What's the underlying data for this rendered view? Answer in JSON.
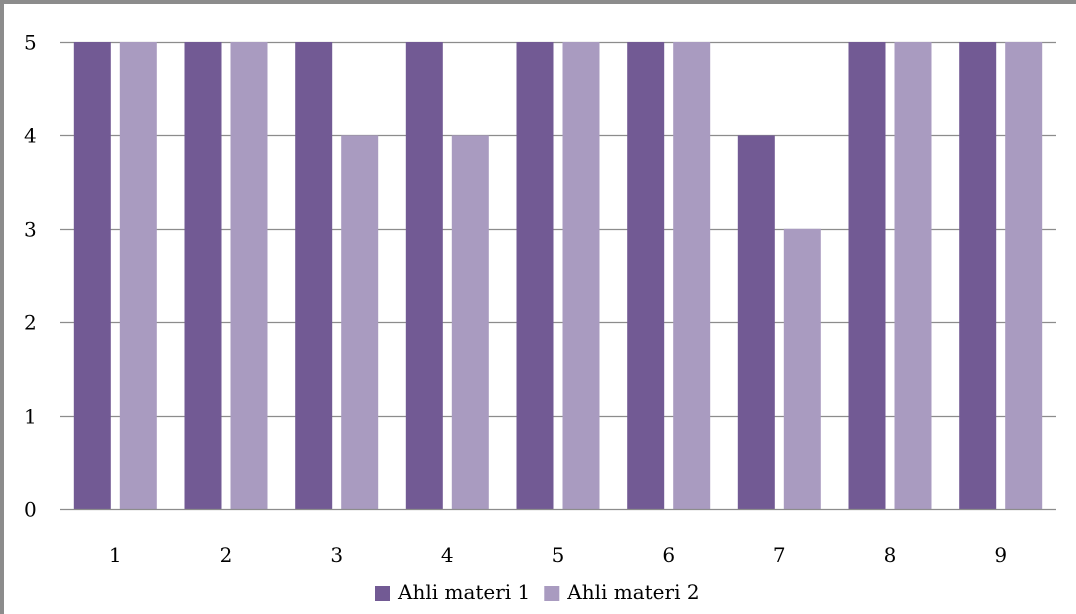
{
  "chart_data": {
    "type": "bar",
    "categories": [
      "1",
      "2",
      "3",
      "4",
      "5",
      "6",
      "7",
      "8",
      "9"
    ],
    "series": [
      {
        "name": "Ahli materi 1",
        "values": [
          5,
          5,
          5,
          5,
          5,
          5,
          4,
          5,
          5
        ],
        "color": "#725a94"
      },
      {
        "name": "Ahli materi 2",
        "values": [
          5,
          5,
          4,
          4,
          5,
          5,
          3,
          5,
          5
        ],
        "color": "#a99bc0"
      }
    ],
    "ylim": [
      0,
      5
    ],
    "yticks": [
      "0",
      "1",
      "2",
      "3",
      "4",
      "5"
    ],
    "grid": true,
    "legend_position": "bottom",
    "title": "",
    "xlabel": "",
    "ylabel": ""
  }
}
